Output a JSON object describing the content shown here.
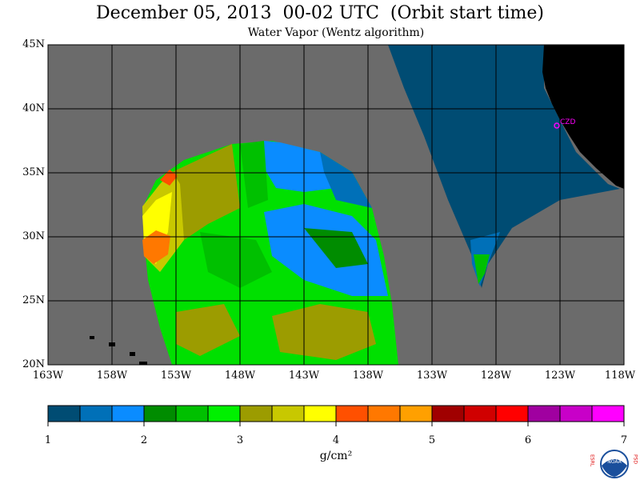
{
  "title": "December 05, 2013  00-02 UTC  (Orbit start time)",
  "subtitle": "Water Vapor (Wentz algorithm)",
  "map": {
    "lat_labels": [
      "45N",
      "40N",
      "35N",
      "30N",
      "25N",
      "20N"
    ],
    "lon_labels": [
      "163W",
      "158W",
      "153W",
      "148W",
      "143W",
      "138W",
      "133W",
      "128W",
      "123W",
      "118W"
    ],
    "station_label": "CZD",
    "colors": {
      "no_data": "#6b6b6b",
      "land": "#000000",
      "grid": "#000000",
      "station": "#ff00ff"
    }
  },
  "colorbar": {
    "tick_labels": [
      "1",
      "2",
      "3",
      "4",
      "5",
      "6",
      "7"
    ],
    "units": "g/cm²",
    "colors": [
      "#004c73",
      "#0070b8",
      "#0a8cff",
      "#008c00",
      "#00c000",
      "#00f000",
      "#9c9c00",
      "#c8c800",
      "#ffff00",
      "#ff5000",
      "#ff7800",
      "#ffa000",
      "#a00000",
      "#d00000",
      "#ff0000",
      "#a000a0",
      "#c800c8",
      "#ff00ff"
    ]
  },
  "logo": {
    "left_letters": "ESRL",
    "right_letters": "PSD",
    "center_text": "NOAA"
  }
}
